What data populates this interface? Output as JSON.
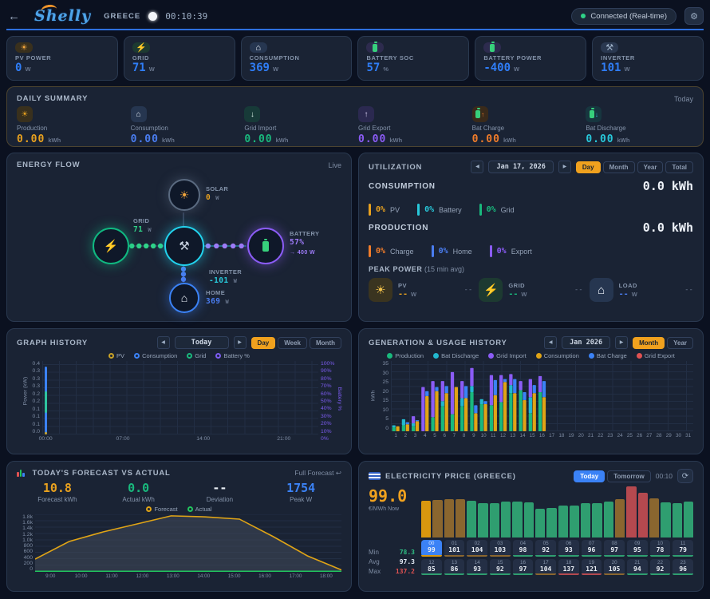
{
  "header": {
    "back_icon": "←",
    "logo": "Shelly",
    "site_name": "GREECE",
    "clock": "00:10:39",
    "connection_status": "Connected (Real-time)",
    "settings_icon": "⚙"
  },
  "stat_cards": [
    {
      "label": "PV POWER",
      "value": "0",
      "unit": "W",
      "icon": "sun-icon",
      "glyph": "☀",
      "glyph_color": "#f0a43c",
      "chip_bg": "#39301d"
    },
    {
      "label": "GRID",
      "value": "71",
      "unit": "W",
      "icon": "bolt-icon",
      "glyph": "⚡",
      "glyph_color": "#e8c93d",
      "chip_bg": "#1d3a31"
    },
    {
      "label": "CONSUMPTION",
      "value": "369",
      "unit": "W",
      "icon": "house-icon",
      "glyph": "⌂",
      "glyph_color": "#e8eef6",
      "chip_bg": "#263650"
    },
    {
      "label": "BATTERY SOC",
      "value": "57",
      "unit": "%",
      "icon": "battery-icon",
      "battery": true,
      "chip_bg": "#2d2b4e"
    },
    {
      "label": "BATTERY POWER",
      "value": "-400",
      "unit": "W",
      "icon": "battery-icon",
      "battery": true,
      "chip_bg": "#2d2b4e"
    },
    {
      "label": "INVERTER",
      "value": "101",
      "unit": "W",
      "icon": "inverter-icon",
      "glyph": "⚒",
      "glyph_color": "#9fb2c8",
      "chip_bg": "#2a3850"
    }
  ],
  "daily_summary": {
    "title": "DAILY SUMMARY",
    "period": "Today",
    "items": [
      {
        "label": "Production",
        "value": "0.00",
        "unit": "kWh",
        "color": "#e8a11f",
        "icon": "sun-icon",
        "glyph": "☀",
        "glyph_color": "#e8a11f",
        "chip_bg": "#39301d"
      },
      {
        "label": "Consumption",
        "value": "0.00",
        "unit": "kWh",
        "color": "#4a7df0",
        "icon": "house-icon",
        "glyph": "⌂",
        "glyph_color": "#e2e9f3",
        "chip_bg": "#263650"
      },
      {
        "label": "Grid Import",
        "value": "0.00",
        "unit": "kWh",
        "color": "#19b97d",
        "icon": "grid-import-icon",
        "glyph": "↓",
        "glyph_color": "#d6ece3",
        "chip_bg": "#173a38"
      },
      {
        "label": "Grid Export",
        "value": "0.00",
        "unit": "kWh",
        "color": "#8b5cf6",
        "icon": "grid-export-icon",
        "glyph": "↑",
        "glyph_color": "#ddd5f7",
        "chip_bg": "#2b2950"
      },
      {
        "label": "Bat Charge",
        "value": "0.00",
        "unit": "kWh",
        "color": "#f07c2a",
        "icon": "battery-charge-icon",
        "battery": true,
        "glyph": "↑",
        "glyph_color": "#f07c2a",
        "chip_bg": "#3a2a1a"
      },
      {
        "label": "Bat Discharge",
        "value": "0.00",
        "unit": "kWh",
        "color": "#28c8da",
        "icon": "battery-discharge-icon",
        "battery": true,
        "glyph": "↓",
        "glyph_color": "#28c8da",
        "chip_bg": "#17363f"
      }
    ]
  },
  "energy_flow": {
    "title": "ENERGY FLOW",
    "live_label": "Live",
    "nodes": {
      "solar": {
        "label": "SOLAR",
        "value": "0",
        "unit": "W",
        "glyph": "☀",
        "color": "#5a6a80",
        "value_color": "#e8a11f"
      },
      "grid": {
        "label": "GRID",
        "value": "71",
        "unit": "W",
        "glyph": "⚡",
        "color": "#10b981",
        "value_color": "#2fd388"
      },
      "inverter": {
        "label": "INVERTER",
        "value": "-101",
        "unit": "W",
        "glyph": "⚒",
        "color": "#22d3ee",
        "value_color": "#28c8da"
      },
      "battery": {
        "label": "BATTERY",
        "soc": "57%",
        "flow": "→ 400 W",
        "color": "#8b5cf6",
        "value_color": "#9d7bf7"
      },
      "home": {
        "label": "HOME",
        "value": "369",
        "unit": "W",
        "glyph": "⌂",
        "color": "#3b82f6",
        "value_color": "#4a7df0"
      }
    }
  },
  "utilization": {
    "title": "UTILIZATION",
    "nav": {
      "prev": "◀",
      "date": "Jan 17, 2026",
      "next": "▶"
    },
    "tabs": [
      {
        "label": "Day",
        "active": true
      },
      {
        "label": "Month"
      },
      {
        "label": "Year"
      },
      {
        "label": "Total"
      }
    ],
    "consumption": {
      "label": "CONSUMPTION",
      "value": "0.0 kWh",
      "breakdown": [
        {
          "pct": "0%",
          "label": "PV",
          "color": "#e8a11f"
        },
        {
          "pct": "0%",
          "label": "Battery",
          "color": "#28c8da"
        },
        {
          "pct": "0%",
          "label": "Grid",
          "color": "#19b97d"
        }
      ]
    },
    "production": {
      "label": "PRODUCTION",
      "value": "0.0 kWh",
      "breakdown": [
        {
          "pct": "0%",
          "label": "Charge",
          "color": "#f07c2a"
        },
        {
          "pct": "0%",
          "label": "Home",
          "color": "#4a7df0"
        },
        {
          "pct": "0%",
          "label": "Export",
          "color": "#8b5cf6"
        }
      ]
    },
    "peak_power": {
      "title": "PEAK POWER",
      "subtitle": "(15 min avg)",
      "items": [
        {
          "label": "PV",
          "value": "--",
          "unit": "W",
          "time": "--",
          "color": "#e8a11f",
          "icon": "sun-icon",
          "glyph": "☀",
          "glyph_color": "#f0c04a",
          "chip_bg": "#3a3420"
        },
        {
          "label": "GRID",
          "value": "--",
          "unit": "W",
          "time": "--",
          "color": "#19b97d",
          "icon": "bolt-icon",
          "glyph": "⚡",
          "glyph_color": "#ffd43b",
          "chip_bg": "#1d3a31"
        },
        {
          "label": "LOAD",
          "value": "--",
          "unit": "W",
          "time": "--",
          "color": "#4a7df0",
          "icon": "house-icon",
          "glyph": "⌂",
          "glyph_color": "#e8eef6",
          "chip_bg": "#263650"
        }
      ]
    }
  },
  "graph_history": {
    "title": "GRAPH HISTORY",
    "nav": {
      "prev": "◀",
      "label": "Today",
      "next": "▶"
    },
    "tabs": [
      {
        "label": "Day",
        "active": true
      },
      {
        "label": "Week"
      },
      {
        "label": "Month"
      }
    ],
    "legend": [
      {
        "label": "PV",
        "color": "#c9a227"
      },
      {
        "label": "Consumption",
        "color": "#3b82f6"
      },
      {
        "label": "Grid",
        "color": "#19b97d"
      },
      {
        "label": "Battery %",
        "color": "#7c5cf0"
      }
    ],
    "chart_data": {
      "type": "line",
      "ylabel_left": "Power (kW)",
      "ylabel_right": "Battery %",
      "yticks_left": [
        "0.4",
        "0.3",
        "0.3",
        "0.3",
        "0.2",
        "0.2",
        "0.1",
        "0.1",
        "0.1",
        "0.0"
      ],
      "yticks_right": [
        "100%",
        "90%",
        "80%",
        "70%",
        "60%",
        "50%",
        "40%",
        "30%",
        "20%",
        "10%",
        "0%"
      ],
      "xticks": [
        {
          "label": "00:00",
          "pos_pct": 1.2
        },
        {
          "label": "07:00",
          "pos_pct": 29.2
        },
        {
          "label": "14:00",
          "pos_pct": 58.3
        },
        {
          "label": "21:00",
          "pos_pct": 87.5
        }
      ],
      "spikes": [
        {
          "name": "Consumption",
          "color": "#3b82f6",
          "x_pct": 1.2,
          "from_pct": 0,
          "to_pct": 92
        },
        {
          "name": "Grid",
          "color": "#2ec4a0",
          "x_pct": 1.2,
          "from_pct": 29,
          "to_pct": 59
        },
        {
          "name": "PV",
          "color": "#c9a227",
          "x_pct": 1.2,
          "from_pct": 0,
          "to_pct": 3
        }
      ]
    }
  },
  "generation_history": {
    "title": "GENERATION & USAGE HISTORY",
    "nav": {
      "prev": "◀",
      "label": "Jan 2026",
      "next": "▶"
    },
    "tabs": [
      {
        "label": "Month",
        "active": true
      },
      {
        "label": "Year"
      }
    ],
    "legend": [
      {
        "label": "Production",
        "color": "#19b97d"
      },
      {
        "label": "Bat Discharge",
        "color": "#22b8cf"
      },
      {
        "label": "Grid Import",
        "color": "#8b5cf6"
      },
      {
        "label": "Consumption",
        "color": "#e0a416"
      },
      {
        "label": "Bat Charge",
        "color": "#3b82f6"
      },
      {
        "label": "Grid Export",
        "color": "#e05252"
      }
    ],
    "chart_data": {
      "type": "stacked-bar",
      "ylabel": "kWh",
      "ymax": 35,
      "yticks": [
        "35",
        "30",
        "25",
        "20",
        "15",
        "10",
        "5",
        "0"
      ],
      "days": [
        1,
        2,
        3,
        4,
        5,
        6,
        7,
        8,
        9,
        10,
        11,
        12,
        13,
        14,
        15,
        16,
        17,
        18,
        19,
        20,
        21,
        22,
        23,
        24,
        25,
        26,
        27,
        28,
        29,
        30,
        31
      ],
      "series_order_generation": [
        "production",
        "bat_discharge",
        "grid_import"
      ],
      "series_order_usage": [
        "consumption",
        "bat_charge",
        "grid_export"
      ],
      "values": [
        {
          "day": 1,
          "production": 2,
          "bat_discharge": 1,
          "grid_import": 0,
          "consumption": 2.5,
          "bat_charge": 0,
          "grid_export": 0
        },
        {
          "day": 2,
          "production": 3,
          "bat_discharge": 3,
          "grid_import": 0,
          "consumption": 3.5,
          "bat_charge": 1,
          "grid_export": 0
        },
        {
          "day": 3,
          "production": 2.5,
          "bat_discharge": 1.5,
          "grid_import": 3.5,
          "consumption": 5,
          "bat_charge": 0.5,
          "grid_export": 0
        },
        {
          "day": 4,
          "production": 0,
          "bat_discharge": 0,
          "grid_import": 22,
          "consumption": 17.5,
          "bat_charge": 2.5,
          "grid_export": 0
        },
        {
          "day": 5,
          "production": 7,
          "bat_discharge": 0,
          "grid_import": 18,
          "consumption": 20,
          "bat_charge": 2,
          "grid_export": 0
        },
        {
          "day": 6,
          "production": 12.5,
          "bat_discharge": 2.5,
          "grid_import": 10,
          "consumption": 19,
          "bat_charge": 3.5,
          "grid_export": 0
        },
        {
          "day": 7,
          "production": 8.5,
          "bat_discharge": 0,
          "grid_import": 21,
          "consumption": 22,
          "bat_charge": 0,
          "grid_export": 0
        },
        {
          "day": 8,
          "production": 12.5,
          "bat_discharge": 4,
          "grid_import": 8.5,
          "consumption": 16.5,
          "bat_charge": 6,
          "grid_export": 0
        },
        {
          "day": 9,
          "production": 19.5,
          "bat_discharge": 3,
          "grid_import": 9,
          "consumption": 9,
          "bat_charge": 4,
          "grid_export": 0
        },
        {
          "day": 10,
          "production": 13.5,
          "bat_discharge": 2.5,
          "grid_import": 0,
          "consumption": 13.5,
          "bat_charge": 1.5,
          "grid_export": 0
        },
        {
          "day": 11,
          "production": 13,
          "bat_discharge": 0,
          "grid_import": 15,
          "consumption": 18,
          "bat_charge": 7.5,
          "grid_export": 0
        },
        {
          "day": 12,
          "production": 14.5,
          "bat_discharge": 0,
          "grid_import": 13.5,
          "consumption": 24.5,
          "bat_charge": 1.5,
          "grid_export": 0
        },
        {
          "day": 13,
          "production": 19,
          "bat_discharge": 4,
          "grid_import": 5.5,
          "consumption": 19,
          "bat_charge": 7,
          "grid_export": 0
        },
        {
          "day": 14,
          "production": 20.5,
          "bat_discharge": 0,
          "grid_import": 4.5,
          "consumption": 15.5,
          "bat_charge": 4,
          "grid_export": 0
        },
        {
          "day": 15,
          "production": 9,
          "bat_discharge": 8,
          "grid_import": 9,
          "consumption": 19,
          "bat_charge": 4,
          "grid_export": 0
        },
        {
          "day": 16,
          "production": 19.5,
          "bat_discharge": 0,
          "grid_import": 8,
          "consumption": 17,
          "bat_charge": 8,
          "grid_export": 0
        }
      ]
    }
  },
  "forecast": {
    "title": "TODAY'S FORECAST VS ACTUAL",
    "link": "Full Forecast ↩",
    "stats": [
      {
        "value": "10.8",
        "label": "Forecast kWh",
        "color": "#e8a11f"
      },
      {
        "value": "0.0",
        "label": "Actual kWh",
        "color": "#19b97d"
      },
      {
        "value": "--",
        "label": "Deviation",
        "color": "#e8edf4"
      },
      {
        "value": "1754",
        "label": "Peak W",
        "color": "#3b82f6"
      }
    ],
    "legend": [
      {
        "label": "Forecast",
        "color": "#e0a416"
      },
      {
        "label": "Actual",
        "color": "#22c55e"
      }
    ],
    "chart_data": {
      "type": "line-area",
      "ymax": 1800,
      "yticks": [
        "1.8k",
        "1.6k",
        "1.4k",
        "1.2k",
        "1.0k",
        "800",
        "600",
        "400",
        "200",
        "0"
      ],
      "xticks": [
        "9:00",
        "10:00",
        "11:00",
        "12:00",
        "13:00",
        "14:00",
        "15:00",
        "16:00",
        "17:00",
        "18:00"
      ],
      "series": [
        {
          "name": "Forecast",
          "color": "#e0a416",
          "values": [
            400,
            950,
            1250,
            1500,
            1754,
            1720,
            1650,
            1100,
            500,
            60
          ]
        },
        {
          "name": "Actual",
          "color": "#22c55e",
          "values": [
            0,
            0,
            0,
            0,
            0,
            0,
            0,
            0,
            0,
            0
          ]
        }
      ]
    }
  },
  "price": {
    "title": "ELECTRICITY PRICE (GREECE)",
    "tabs": [
      {
        "label": "Today",
        "active": true
      },
      {
        "label": "Tomorrow"
      }
    ],
    "time": "00:10",
    "refresh_icon": "⟳",
    "now_value": "99.0",
    "now_unit": "€/MWh Now",
    "stats": {
      "min_label": "Min",
      "min": "78.3",
      "min_color": "#2fbf84",
      "avg_label": "Avg",
      "avg": "97.3",
      "avg_color": "#e2e9f3",
      "max_label": "Max",
      "max": "137.2",
      "max_color": "#e05252"
    },
    "chart_data": {
      "type": "bar",
      "unit": "€/MWh",
      "hours": [
        "00",
        "01",
        "02",
        "03",
        "04",
        "05",
        "06",
        "07",
        "08",
        "09",
        "10",
        "11",
        "12",
        "13",
        "14",
        "15",
        "16",
        "17",
        "18",
        "19",
        "20",
        "21",
        "22",
        "23"
      ],
      "values": [
        99,
        101,
        104,
        103,
        98,
        92,
        93,
        96,
        97,
        95,
        78,
        79,
        85,
        86,
        93,
        92,
        97,
        104,
        137,
        121,
        105,
        94,
        92,
        96
      ],
      "current_hour": 0,
      "min": 78.3,
      "avg": 97.3,
      "max": 137.2
    },
    "colors": {
      "low": "#2f9e70",
      "mid": "#8a662f",
      "high": "#b5494f",
      "now": "#d9970f"
    }
  }
}
